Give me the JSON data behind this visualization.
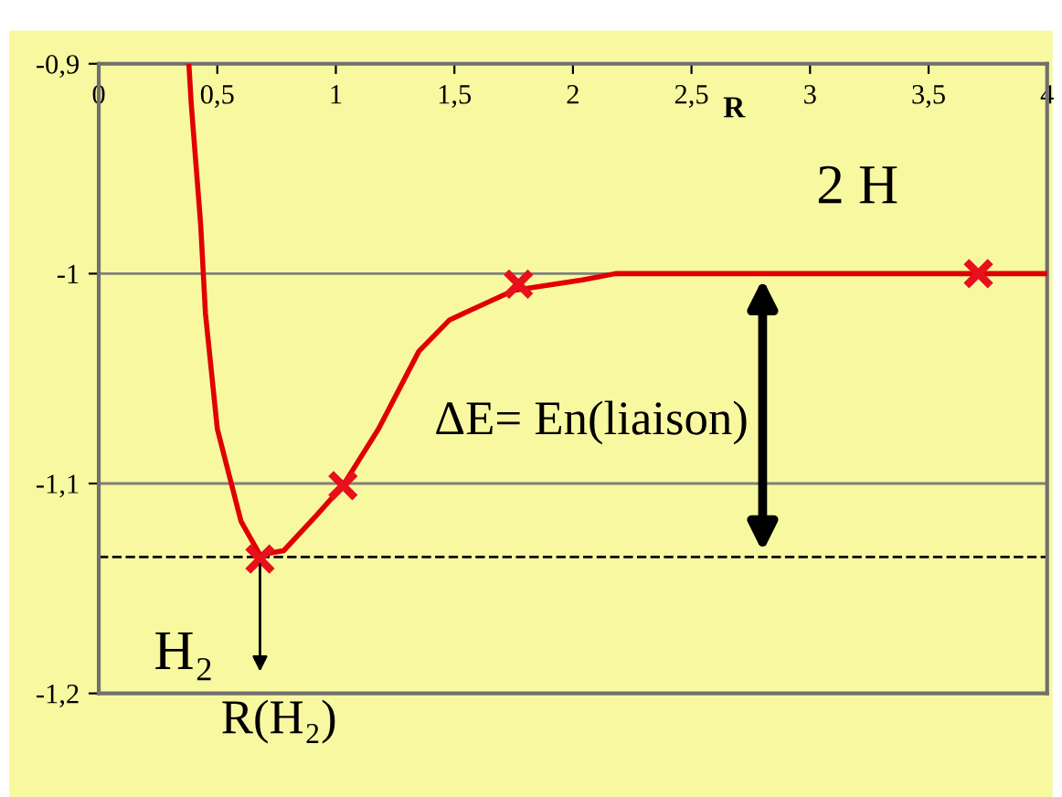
{
  "chart_data": {
    "type": "line",
    "xlabel": "R",
    "series": [
      {
        "color": "#e00000",
        "x": [
          0.38,
          0.39,
          0.43,
          0.45,
          0.5,
          0.6,
          0.68,
          0.78,
          0.92,
          1.03,
          1.18,
          1.35,
          1.48,
          1.75,
          2.04,
          2.18,
          4.0
        ],
        "values": [
          -0.9,
          -0.919,
          -0.977,
          -1.019,
          -1.074,
          -1.118,
          -1.134,
          -1.132,
          -1.115,
          -1.101,
          -1.074,
          -1.037,
          -1.022,
          -1.008,
          -1.003,
          -1.0,
          -1.0
        ]
      },
      {
        "type": "scatter",
        "color": "#e8101a",
        "marker": "cross",
        "x": [
          0.68,
          1.03,
          1.77,
          3.71
        ],
        "values": [
          -1.136,
          -1.101,
          -1.005,
          -1.0
        ]
      }
    ],
    "xlim": [
      0,
      4
    ],
    "ylim": [
      -1.2,
      -0.9
    ],
    "xticks": [
      0,
      {
        "value": 0.5,
        "label": "0,5"
      },
      1,
      {
        "value": 1.5,
        "label": "1,5"
      },
      2,
      {
        "value": 2.5,
        "label": "2,5"
      },
      3,
      {
        "value": 3.5,
        "label": "3,5"
      },
      4
    ],
    "yticks": [
      {
        "value": -1.2,
        "label": "-1,2"
      },
      {
        "value": -1.1,
        "label": "-1,1"
      },
      {
        "value": -1.0,
        "label": "-1"
      },
      {
        "value": -0.9,
        "label": "-0,9"
      }
    ],
    "grid": "y",
    "ref_lines": [
      {
        "axis": "y",
        "value": -1.135,
        "color": "#000000",
        "line_style": "dashed"
      }
    ],
    "annotations": [
      "2 H",
      "ΔE= En(liaison)",
      {
        "text": "H₂",
        "x": 0.68,
        "y": -1.136
      },
      "R(H₂)"
    ]
  }
}
